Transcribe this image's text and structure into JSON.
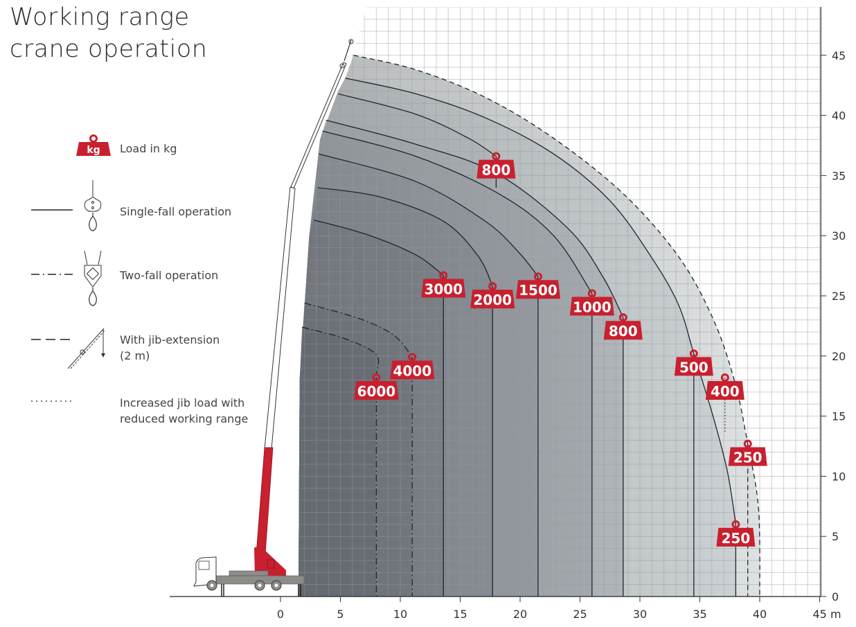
{
  "title": {
    "line1": "Working range",
    "line2": "crane operation"
  },
  "legend": {
    "load": "Load in kg",
    "load_icon_text": "kg",
    "single_fall": "Single-fall operation",
    "two_fall": "Two-fall operation",
    "jib_line1": "With jib-extension",
    "jib_line2": "(2 m)",
    "increased_line1": "Increased jib load with",
    "increased_line2": "reduced working range"
  },
  "colors": {
    "load_badge": "#c8202f",
    "curve": "#1e2430",
    "grid": "#c8c8c8",
    "boom_red": "#c8202f"
  },
  "chart_data": {
    "type": "line",
    "x_axis": {
      "range": [
        0,
        45
      ],
      "ticks": [
        "0",
        "5",
        "10",
        "15",
        "20",
        "25",
        "30",
        "35",
        "40",
        "45 m"
      ],
      "tick_values": [
        0,
        5,
        10,
        15,
        20,
        25,
        30,
        35,
        40,
        45
      ]
    },
    "y_axis": {
      "range": [
        0,
        45
      ],
      "position": "right",
      "ticks": [
        "0",
        "5",
        "10",
        "15",
        "20",
        "25",
        "30",
        "35",
        "40",
        "45"
      ],
      "tick_values": [
        0,
        5,
        10,
        15,
        20,
        25,
        30,
        35,
        40,
        45
      ]
    },
    "grid": true,
    "curves": [
      {
        "load": "250",
        "style": "dashed",
        "mode": "jib",
        "points": [
          [
            6.1,
            45.0
          ],
          [
            11.3,
            43.8
          ],
          [
            17.1,
            41.5
          ],
          [
            22.8,
            38.1
          ],
          [
            28.6,
            33.5
          ],
          [
            33.2,
            28.3
          ],
          [
            36.1,
            23.1
          ],
          [
            37.9,
            17.9
          ],
          [
            39.0,
            12.7
          ],
          [
            39.9,
            7.3
          ],
          [
            40.0,
            0
          ]
        ],
        "marker": [
          39.0,
          12.7
        ],
        "fill": "#dde1e2"
      },
      {
        "load": "250",
        "style": "solid",
        "mode": "single",
        "points": [
          [
            5.4,
            43.1
          ],
          [
            11.3,
            41.8
          ],
          [
            17.1,
            39.8
          ],
          [
            22.8,
            36.8
          ],
          [
            27.5,
            32.9
          ],
          [
            30.9,
            28.3
          ],
          [
            33.2,
            24.3
          ],
          [
            34.5,
            20.2
          ],
          [
            36.1,
            15.0
          ],
          [
            37.3,
            10.4
          ],
          [
            38.0,
            6.0
          ]
        ],
        "marker": [
          38.0,
          6.0
        ],
        "fill": "#cdd2d5"
      },
      {
        "load": "500",
        "style": "solid",
        "mode": "single",
        "points": [],
        "marker": [
          34.5,
          20.2
        ]
      },
      {
        "load": "400",
        "style": "dotted",
        "mode": "jib-increased",
        "points": [
          [
            37.1,
            18.2
          ],
          [
            37.1,
            13.6
          ]
        ],
        "marker": [
          37.1,
          18.2
        ]
      },
      {
        "load": "800",
        "style": "solid",
        "mode": "single",
        "points": [
          [
            4.8,
            41.8
          ],
          [
            11.3,
            40.1
          ],
          [
            15.7,
            38.1
          ],
          [
            18.0,
            36.6
          ]
        ],
        "marker": [
          18.0,
          36.6
        ],
        "fill": "#c4c9cd",
        "pointer_only": true
      },
      {
        "load": "800",
        "style": "solid",
        "mode": "single",
        "points": [
          [
            3.8,
            39.6
          ],
          [
            11.3,
            37.6
          ],
          [
            18.0,
            35.2
          ],
          [
            24.0,
            30.6
          ],
          [
            26.9,
            26.6
          ],
          [
            28.6,
            23.2
          ]
        ],
        "marker": [
          28.6,
          23.2
        ],
        "fill": "#babfc4"
      },
      {
        "load": "1000",
        "style": "solid",
        "mode": "single",
        "points": [
          [
            3.5,
            38.7
          ],
          [
            11.3,
            36.6
          ],
          [
            18.2,
            33.5
          ],
          [
            22.8,
            30.0
          ],
          [
            26.0,
            25.2
          ]
        ],
        "marker": [
          26.0,
          25.2
        ],
        "fill": "#aeb3b9"
      },
      {
        "load": "1500",
        "style": "solid",
        "mode": "single",
        "points": [
          [
            3.2,
            36.8
          ],
          [
            11.3,
            34.5
          ],
          [
            17.1,
            31.2
          ],
          [
            19.9,
            28.6
          ],
          [
            21.5,
            26.6
          ]
        ],
        "marker": [
          21.5,
          26.6
        ],
        "fill": "#a2a7ae"
      },
      {
        "load": "2000",
        "style": "solid",
        "mode": "single",
        "points": [
          [
            3.1,
            34.0
          ],
          [
            8.4,
            33.2
          ],
          [
            13.6,
            31.2
          ],
          [
            16.5,
            28.3
          ],
          [
            17.7,
            25.8
          ]
        ],
        "marker": [
          17.7,
          25.8
        ],
        "fill": "#969ba3"
      },
      {
        "load": "3000",
        "style": "solid",
        "mode": "single",
        "points": [
          [
            2.8,
            31.3
          ],
          [
            7.2,
            30.1
          ],
          [
            11.3,
            28.4
          ],
          [
            13.6,
            26.7
          ]
        ],
        "marker": [
          13.6,
          26.7
        ],
        "fill": "#8b9098"
      },
      {
        "load": "4000",
        "style": "dashdot",
        "mode": "two",
        "points": [
          [
            2.0,
            24.4
          ],
          [
            6.6,
            23.1
          ],
          [
            9.5,
            21.7
          ],
          [
            11.0,
            19.9
          ]
        ],
        "marker": [
          11.0,
          19.9
        ],
        "fill": "#838890"
      },
      {
        "load": "6000",
        "style": "dashdot",
        "mode": "two",
        "points": [
          [
            1.8,
            22.4
          ],
          [
            5.5,
            21.4
          ],
          [
            8.0,
            20.1
          ],
          [
            8.0,
            18.5
          ]
        ],
        "marker": [
          8.0,
          18.2
        ],
        "fill": "#7b8089"
      }
    ]
  }
}
